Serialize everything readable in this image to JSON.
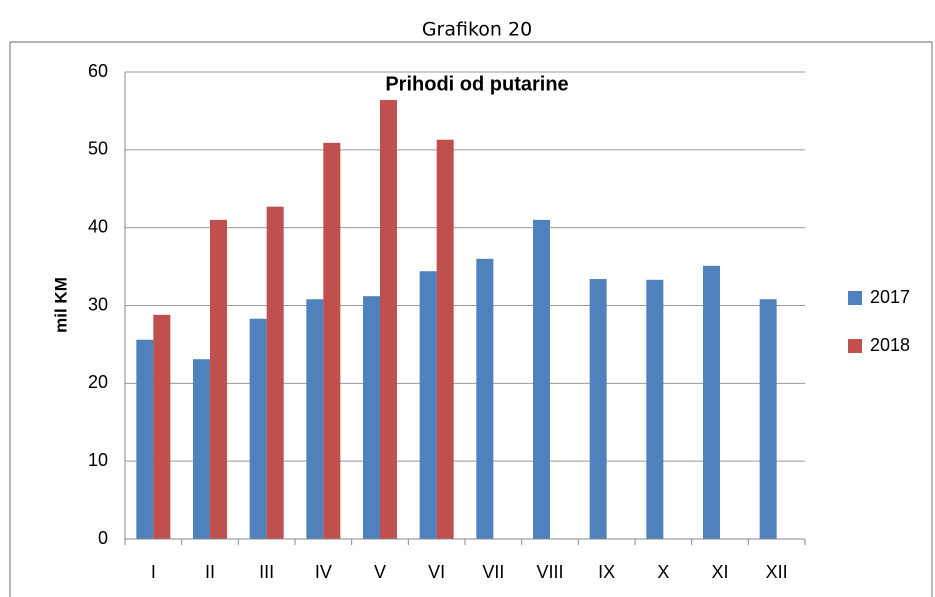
{
  "caption": "Grafikon 20",
  "chart_data": {
    "type": "bar",
    "title": "Prihodi od putarine",
    "y_label": "mil KM",
    "categories": [
      "I",
      "II",
      "III",
      "IV",
      "V",
      "VI",
      "VII",
      "VIII",
      "IX",
      "X",
      "XI",
      "XII"
    ],
    "series": [
      {
        "name": "2017",
        "color": "#4f81bd",
        "values": [
          25.6,
          23.1,
          28.3,
          30.8,
          31.2,
          34.4,
          36.0,
          41.0,
          33.4,
          33.3,
          35.1,
          30.8
        ]
      },
      {
        "name": "2018",
        "color": "#c0504d",
        "values": [
          28.8,
          41.0,
          42.7,
          50.9,
          56.4,
          51.3,
          null,
          null,
          null,
          null,
          null,
          null
        ]
      }
    ],
    "ylim": [
      0,
      60
    ],
    "yticks": [
      0,
      10,
      20,
      30,
      40,
      50,
      60
    ],
    "grid": true,
    "legend": "right"
  }
}
